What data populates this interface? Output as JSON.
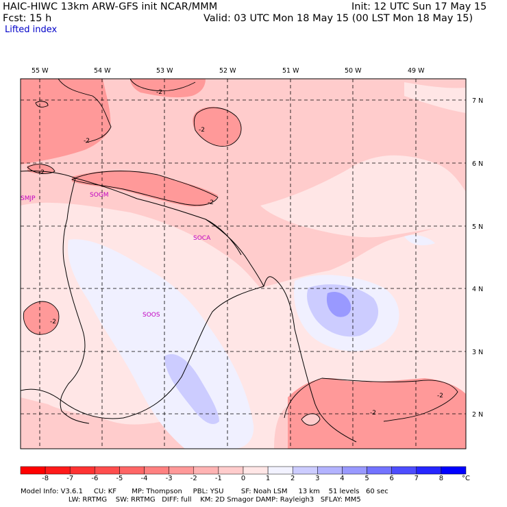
{
  "header": {
    "line1_left": "HAIC-HIWC 13km ARW-GFS init   NCAR/MMM",
    "line1_right": "Init: 12 UTC Sun 17 May 15",
    "line2_left": "Fcst:   15 h",
    "line2_right": "Valid: 03 UTC Mon 18 May 15 (00 LST Mon 18 May 15)",
    "field": "Lifted index"
  },
  "lon_labels": [
    "55 W",
    "54 W",
    "53 W",
    "52 W",
    "51 W",
    "50 W",
    "49 W"
  ],
  "lat_labels": [
    "7 N",
    "6 N",
    "5 N",
    "4 N",
    "3 N",
    "2 N"
  ],
  "stations": [
    "SMJP",
    "SOGM",
    "SOCA",
    "SOOS"
  ],
  "contour_labels": [
    "-2",
    "-2",
    "-2",
    "-2",
    "-2",
    "-2",
    "-2",
    "-2"
  ],
  "colorbar": {
    "ticks": [
      "-8",
      "-7",
      "-6",
      "-5",
      "-4",
      "-3",
      "-2",
      "-1",
      "0",
      "1",
      "2",
      "3",
      "4",
      "5",
      "6",
      "7",
      "8"
    ],
    "unit": "°C",
    "colors": [
      "#ff1a1a",
      "#ff3333",
      "#ff4d4d",
      "#ff6666",
      "#ff8080",
      "#ff9999",
      "#ffb3b3",
      "#ffcccc",
      "#ffe6e6",
      "#f2f2ff",
      "#ccccff",
      "#b3b3ff",
      "#9999ff",
      "#7373ff",
      "#4d4dff",
      "#2626ff",
      "#0000ff"
    ]
  },
  "footer": {
    "line1": "Model Info: V3.6.1     CU: KF       MP: Thompson     PBL: YSU        SF: Noah LSM     13 km    51 levels   60 sec",
    "line2": "                      LW: RRTMG    SW: RRTMG   DIFF: full    KM: 2D Smagor DAMP: Rayleigh3   SFLAY: MM5"
  }
}
